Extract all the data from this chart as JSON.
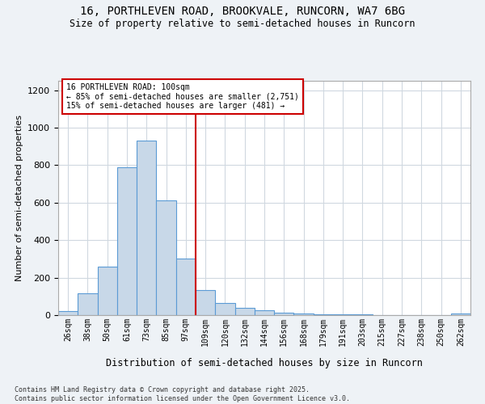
{
  "title_line1": "16, PORTHLEVEN ROAD, BROOKVALE, RUNCORN, WA7 6BG",
  "title_line2": "Size of property relative to semi-detached houses in Runcorn",
  "xlabel": "Distribution of semi-detached houses by size in Runcorn",
  "ylabel": "Number of semi-detached properties",
  "categories": [
    "26sqm",
    "38sqm",
    "50sqm",
    "61sqm",
    "73sqm",
    "85sqm",
    "97sqm",
    "109sqm",
    "120sqm",
    "132sqm",
    "144sqm",
    "156sqm",
    "168sqm",
    "179sqm",
    "191sqm",
    "203sqm",
    "215sqm",
    "227sqm",
    "238sqm",
    "250sqm",
    "262sqm"
  ],
  "bar_heights": [
    20,
    115,
    260,
    790,
    930,
    610,
    300,
    135,
    65,
    38,
    25,
    15,
    8,
    5,
    5,
    5,
    2,
    2,
    0,
    0,
    10
  ],
  "bar_color": "#c8d8e8",
  "bar_edge_color": "#5b9bd5",
  "vline_color": "#cc0000",
  "annotation_line1": "16 PORTHLEVEN ROAD: 100sqm",
  "annotation_line2": "← 85% of semi-detached houses are smaller (2,751)",
  "annotation_line3": "15% of semi-detached houses are larger (481) →",
  "annotation_box_color": "#ffffff",
  "annotation_box_edge_color": "#cc0000",
  "ylim": [
    0,
    1250
  ],
  "yticks": [
    0,
    200,
    400,
    600,
    800,
    1000,
    1200
  ],
  "footer_text": "Contains HM Land Registry data © Crown copyright and database right 2025.\nContains public sector information licensed under the Open Government Licence v3.0.",
  "background_color": "#eef2f6",
  "plot_background_color": "#ffffff",
  "grid_color": "#d0d8e0"
}
